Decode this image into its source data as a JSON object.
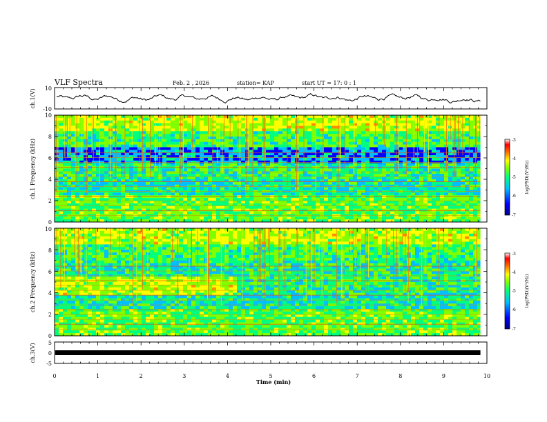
{
  "header": {
    "title": "VLF Spectra",
    "date": "Feb. 2 , 2026",
    "station": "station= KAP",
    "start_time": "start  UT =   17: 0  : 1"
  },
  "chart_data": [
    {
      "type": "line",
      "name": "ch1-waveform",
      "ylabel": "ch.1(V)",
      "ylim": [
        -10,
        10
      ],
      "yticks": [
        "10",
        "-10"
      ],
      "x_range_min": [
        0,
        10
      ],
      "data_end_min": 9.85
    },
    {
      "type": "heatmap",
      "name": "ch1-spectrogram",
      "ylabel": "ch.1 Frequency (kHz)",
      "ylim": [
        0,
        10
      ],
      "yticks": [
        "0",
        "2",
        "4",
        "6",
        "8",
        "10"
      ],
      "data_end_min": 9.85,
      "colorbar": {
        "label": "log(PSD)(V²/Hz)",
        "range": [
          -7,
          -3
        ],
        "ticks": [
          "-3",
          "-4",
          "-5",
          "-6",
          "-7"
        ]
      }
    },
    {
      "type": "heatmap",
      "name": "ch2-spectrogram",
      "ylabel": "ch.2 Frequency (kHz)",
      "ylim": [
        0,
        10
      ],
      "yticks": [
        "0",
        "2",
        "4",
        "6",
        "8",
        "10"
      ],
      "data_end_min": 9.85,
      "colorbar": {
        "label": "log(PSD)(V²/Hz)",
        "range": [
          -7,
          -3
        ],
        "ticks": [
          "-3",
          "-4",
          "-5",
          "-6",
          "-7"
        ]
      }
    },
    {
      "type": "line",
      "name": "ch3-waveform",
      "ylabel": "ch.3(V)",
      "ylim": [
        -5,
        5
      ],
      "yticks": [
        "5",
        "0",
        "-5"
      ],
      "data_end_min": 9.85
    }
  ],
  "x_axis": {
    "label": "Time  (min)",
    "range": [
      0,
      10
    ],
    "ticks": [
      "0",
      "1",
      "2",
      "3",
      "4",
      "5",
      "6",
      "7",
      "8",
      "9",
      "10"
    ]
  },
  "colors": {
    "axis": "#000000",
    "colormap": [
      "#00008b",
      "#0000ff",
      "#00bfff",
      "#00ff7f",
      "#7fff00",
      "#ffff00",
      "#ff8c00",
      "#ff0000",
      "#ffffff"
    ]
  }
}
